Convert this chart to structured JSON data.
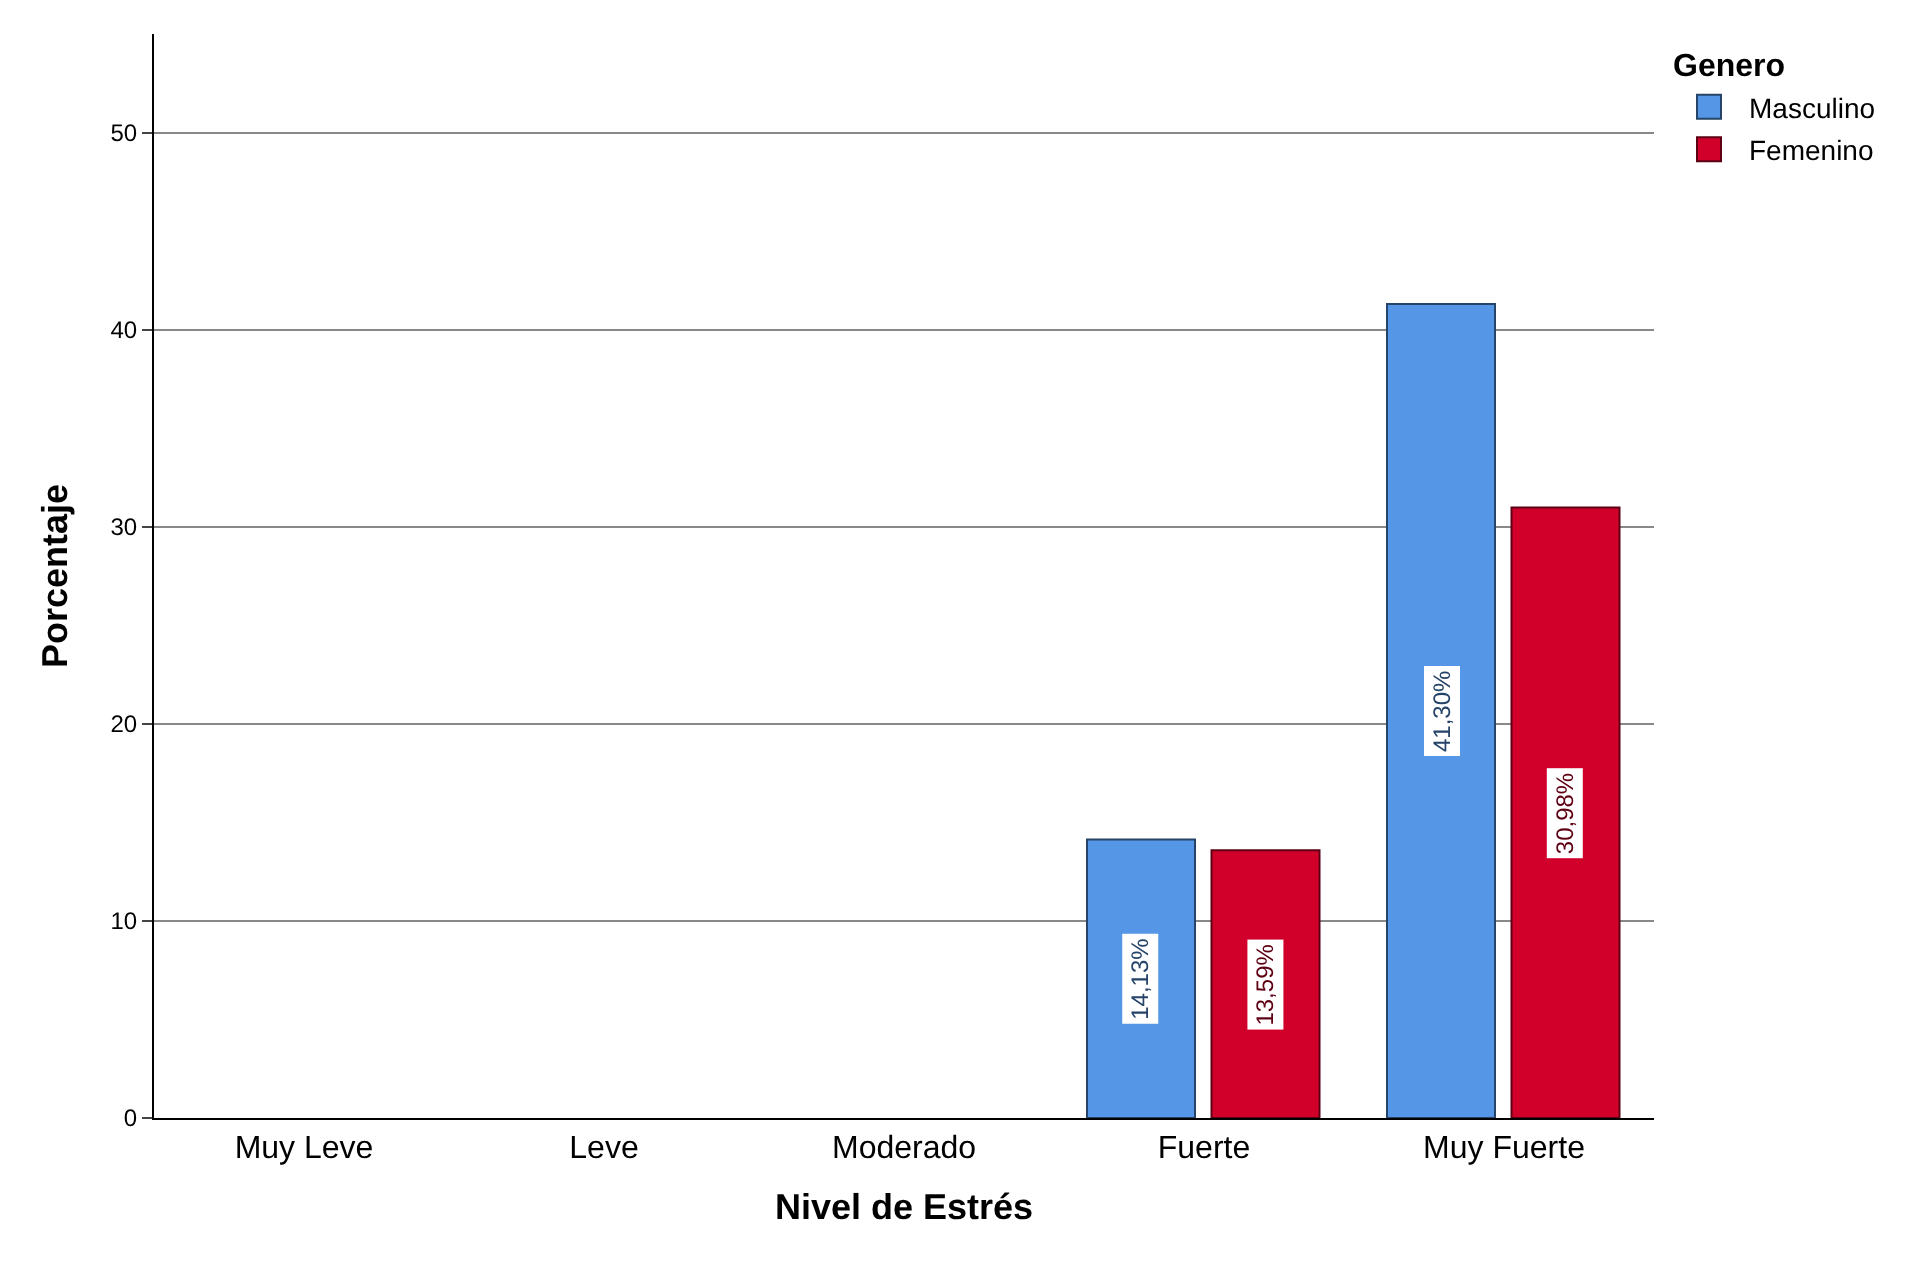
{
  "chart_data": {
    "type": "bar",
    "xlabel": "Nivel de Estrés",
    "ylabel": "Porcentaje",
    "legend_title": "Genero",
    "categories": [
      "Muy Leve",
      "Leve",
      "Moderado",
      "Fuerte",
      "Muy Fuerte"
    ],
    "series": [
      {
        "name": "Masculino",
        "color": "#5596e6",
        "values": [
          null,
          null,
          null,
          14.13,
          41.3
        ],
        "value_labels": [
          null,
          null,
          null,
          "14,13%",
          "41,30%"
        ]
      },
      {
        "name": "Femenino",
        "color": "#d1002b",
        "values": [
          null,
          null,
          null,
          13.59,
          30.98
        ],
        "value_labels": [
          null,
          null,
          null,
          "13,59%",
          "30,98%"
        ]
      }
    ],
    "ylim": [
      0,
      55
    ],
    "yticks": [
      0,
      10,
      20,
      30,
      40,
      50
    ],
    "grid": "y",
    "legend": "top right"
  }
}
